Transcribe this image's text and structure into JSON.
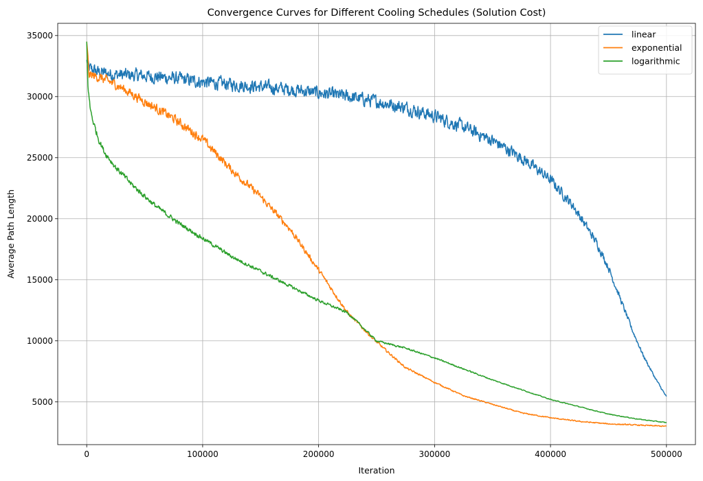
{
  "chart_data": {
    "type": "line",
    "title": "Convergence Curves for Different Cooling Schedules (Solution Cost)",
    "xlabel": "Iteration",
    "ylabel": "Average Path Length",
    "xlim": [
      -25000,
      525000
    ],
    "ylim": [
      1500,
      36000
    ],
    "xticks": [
      0,
      100000,
      200000,
      300000,
      400000,
      500000
    ],
    "xtick_labels": [
      "0",
      "100000",
      "200000",
      "300000",
      "400000",
      "500000"
    ],
    "yticks": [
      5000,
      10000,
      15000,
      20000,
      25000,
      30000,
      35000
    ],
    "ytick_labels": [
      "5000",
      "10000",
      "15000",
      "20000",
      "25000",
      "30000",
      "35000"
    ],
    "grid": true,
    "legend_position": "top-right",
    "series": [
      {
        "name": "linear",
        "color": "#1f77b4",
        "noise": 450,
        "x": [
          0,
          2000,
          10000,
          25000,
          50000,
          75000,
          100000,
          125000,
          150000,
          175000,
          200000,
          225000,
          250000,
          275000,
          300000,
          325000,
          350000,
          375000,
          400000,
          420000,
          440000,
          450000,
          460000,
          470000,
          480000,
          490000,
          500000
        ],
        "y": [
          33000,
          32300,
          32000,
          31800,
          31700,
          31500,
          31200,
          31000,
          30800,
          30600,
          30300,
          30000,
          29600,
          29100,
          28400,
          27500,
          26400,
          25000,
          23200,
          21000,
          18000,
          16000,
          13500,
          11000,
          8800,
          7000,
          5400
        ]
      },
      {
        "name": "exponential",
        "color": "#ff7f0e",
        "noise": 320,
        "x": [
          0,
          2000,
          10000,
          25000,
          50000,
          75000,
          100000,
          125000,
          150000,
          175000,
          200000,
          225000,
          250000,
          275000,
          300000,
          325000,
          350000,
          375000,
          400000,
          425000,
          450000,
          475000,
          500000
        ],
        "y": [
          34500,
          31800,
          31600,
          31000,
          29600,
          28200,
          26500,
          24000,
          21800,
          19200,
          15800,
          12300,
          9900,
          7800,
          6600,
          5500,
          4800,
          4100,
          3700,
          3400,
          3200,
          3100,
          3000
        ]
      },
      {
        "name": "logarithmic",
        "color": "#2ca02c",
        "noise": 220,
        "x": [
          0,
          1000,
          3000,
          6000,
          10000,
          15000,
          25000,
          40000,
          60000,
          80000,
          100000,
          125000,
          150000,
          175000,
          200000,
          225000,
          250000,
          275000,
          300000,
          325000,
          350000,
          375000,
          400000,
          425000,
          450000,
          475000,
          500000
        ],
        "y": [
          34500,
          31000,
          29000,
          27800,
          26600,
          25500,
          24200,
          22700,
          21000,
          19600,
          18400,
          16900,
          15700,
          14500,
          13300,
          12300,
          10000,
          9400,
          8600,
          7700,
          6800,
          6000,
          5200,
          4600,
          4000,
          3600,
          3300
        ]
      }
    ]
  }
}
